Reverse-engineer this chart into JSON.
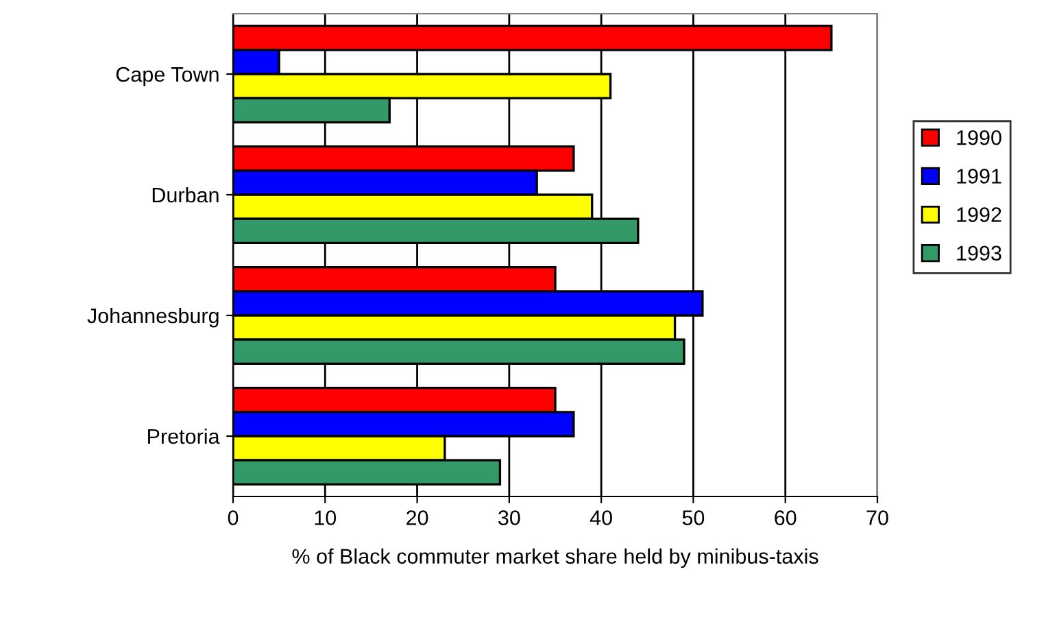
{
  "chart_data": {
    "type": "bar",
    "orientation": "horizontal",
    "xlabel": "% of Black commuter market share held by minibus-taxis",
    "categories": [
      "Cape Town",
      "Durban",
      "Johannesburg",
      "Pretoria"
    ],
    "series": [
      {
        "name": "1990",
        "color": "#ff0000",
        "values": [
          65,
          37,
          35,
          35
        ]
      },
      {
        "name": "1991",
        "color": "#0000ff",
        "values": [
          5,
          33,
          51,
          37
        ]
      },
      {
        "name": "1992",
        "color": "#ffff00",
        "values": [
          41,
          39,
          48,
          23
        ]
      },
      {
        "name": "1993",
        "color": "#339966",
        "values": [
          17,
          44,
          49,
          29
        ]
      }
    ],
    "xlim": [
      0,
      70
    ],
    "xticks": [
      0,
      10,
      20,
      30,
      40,
      50,
      60,
      70
    ],
    "grid": "x",
    "legend": "right"
  }
}
